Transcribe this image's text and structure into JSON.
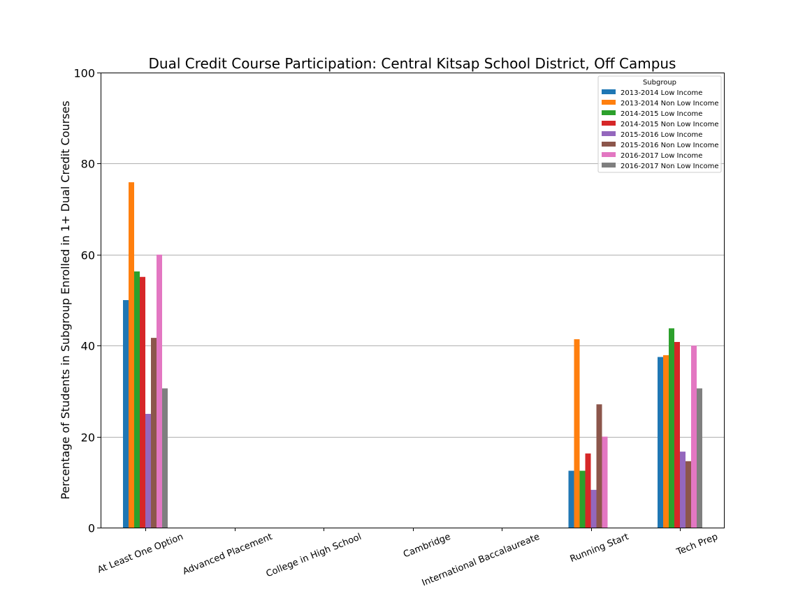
{
  "chart_data": {
    "type": "bar",
    "title": "Dual Credit Course Participation: Central Kitsap School District, Off Campus",
    "xlabel": "",
    "ylabel": "Percentage of Students in Subgroup Enrolled in 1+ Dual Credit Courses",
    "ylim": [
      0,
      100
    ],
    "yticks": [
      "0",
      "20",
      "40",
      "60",
      "80",
      "100"
    ],
    "grid": "horizontal",
    "legend_title": "Subgroup",
    "legend_position": "top-right",
    "categories": [
      "At Least One Option",
      "Advanced Placement",
      "College in High School",
      "Cambridge",
      "International Baccalaureate",
      "Running Start",
      "Tech Prep"
    ],
    "series": [
      {
        "name": "2013-2014 Low Income",
        "color": "#1f77b4",
        "values": [
          50,
          0,
          0,
          0,
          0,
          12.5,
          37.5
        ]
      },
      {
        "name": "2013-2014 Non Low Income",
        "color": "#ff7f0e",
        "values": [
          75.9,
          0,
          0,
          0,
          0,
          41.4,
          37.9
        ]
      },
      {
        "name": "2014-2015 Low Income",
        "color": "#2ca02c",
        "values": [
          56.3,
          0,
          0,
          0,
          0,
          12.5,
          43.8
        ]
      },
      {
        "name": "2014-2015 Non Low Income",
        "color": "#d62728",
        "values": [
          55.1,
          0,
          0,
          0,
          0,
          16.3,
          40.8
        ]
      },
      {
        "name": "2015-2016 Low Income",
        "color": "#9467bd",
        "values": [
          25,
          0,
          0,
          0,
          0,
          8.3,
          16.7
        ]
      },
      {
        "name": "2015-2016 Non Low Income",
        "color": "#8c564b",
        "values": [
          41.7,
          0,
          0,
          0,
          0,
          27.1,
          14.6
        ]
      },
      {
        "name": "2016-2017 Low Income",
        "color": "#e377c2",
        "values": [
          60,
          0,
          0,
          0,
          0,
          20,
          40
        ]
      },
      {
        "name": "2016-2017 Non Low Income",
        "color": "#7f7f7f",
        "values": [
          30.6,
          0,
          0,
          0,
          0,
          0,
          30.6
        ]
      }
    ]
  }
}
